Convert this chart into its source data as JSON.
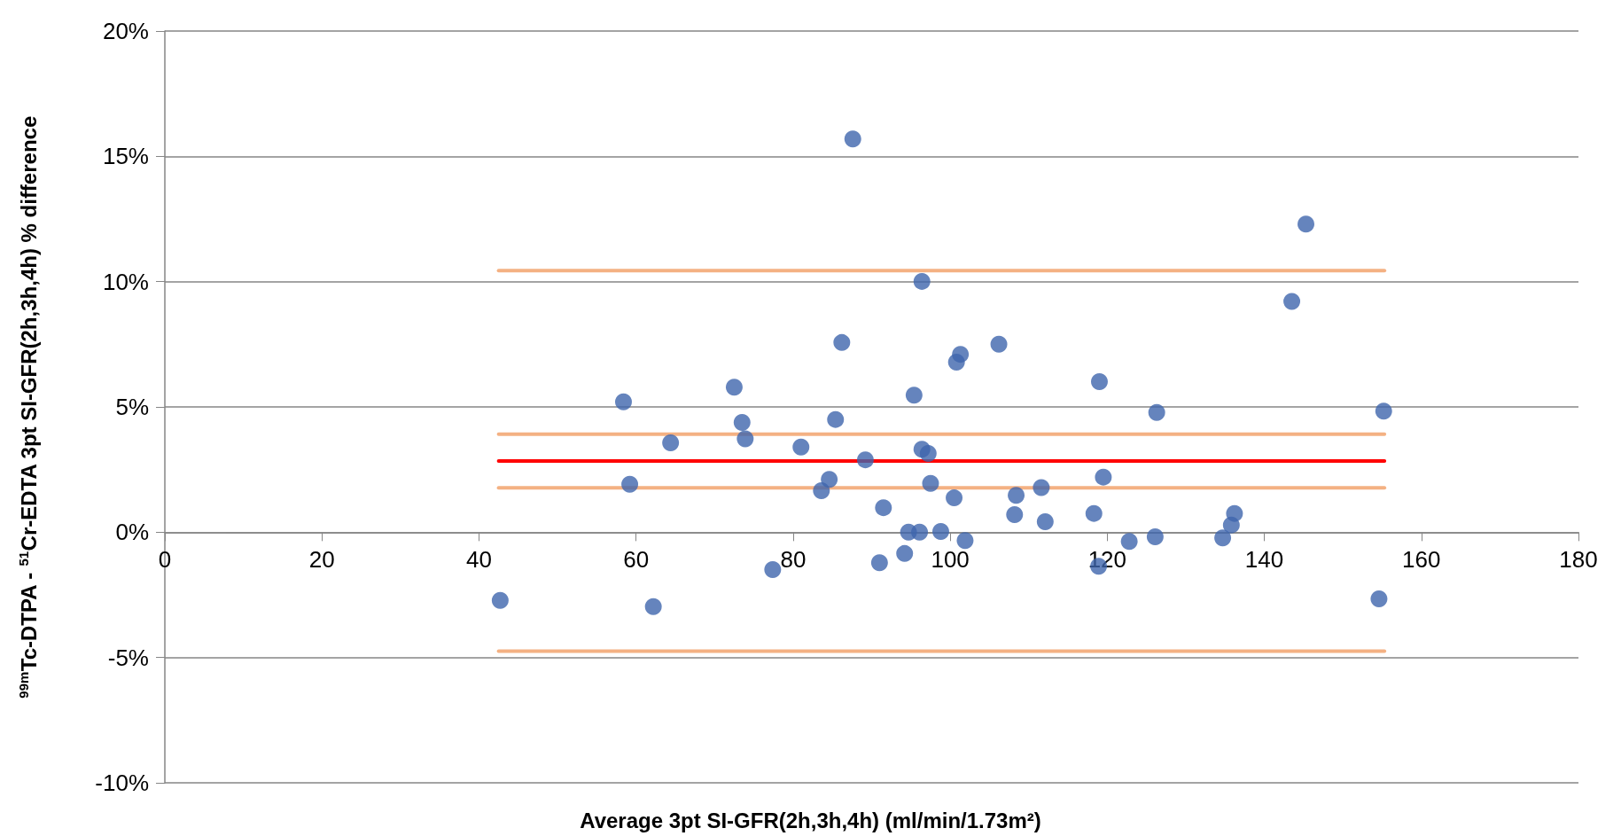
{
  "chart_data": {
    "type": "scatter",
    "xlabel": "Average 3pt SI-GFR(2h,3h,4h) (ml/min/1.73m²)",
    "ylabel": "$^{99m}$Tc-DTPA - $^{51}$Cr-EDTA 3pt SI-GFR(2h,3h,4h) % difference",
    "xlim": [
      0,
      180
    ],
    "xticks": [
      0,
      20,
      40,
      60,
      80,
      100,
      120,
      140,
      160,
      180
    ],
    "ylim": [
      -10,
      20
    ],
    "yticks": [
      {
        "value": -10,
        "label": "-10%"
      },
      {
        "value": -5,
        "label": "-5%"
      },
      {
        "value": 0,
        "label": "0%"
      },
      {
        "value": 5,
        "label": "5%"
      },
      {
        "value": 10,
        "label": "10%"
      },
      {
        "value": 15,
        "label": "15%"
      },
      {
        "value": 20,
        "label": "20%"
      }
    ],
    "grid": "y",
    "marker": "circle",
    "series": [
      {
        "color": "#3f65ad",
        "x": [
          42.7,
          58.4,
          59.2,
          62.2,
          64.4,
          72.5,
          73.5,
          73.9,
          77.4,
          81.0,
          83.6,
          84.6,
          85.4,
          86.2,
          87.6,
          89.2,
          91.0,
          91.5,
          94.2,
          94.7,
          95.4,
          96.1,
          96.4,
          96.4,
          97.2,
          97.5,
          98.8,
          100.5,
          100.8,
          101.3,
          101.9,
          106.2,
          108.4,
          108.2,
          111.6,
          112.1,
          118.3,
          119.0,
          118.9,
          119.5,
          122.8,
          126.1,
          126.3,
          134.7,
          135.8,
          136.2,
          143.5,
          145.3,
          154.6,
          155.2
        ],
        "values": [
          -2.72,
          5.2,
          1.91,
          -2.97,
          3.57,
          5.79,
          4.38,
          3.73,
          -1.49,
          3.4,
          1.66,
          2.11,
          4.5,
          7.57,
          15.69,
          2.89,
          -1.22,
          0.98,
          -0.85,
          0.0,
          5.47,
          0.0,
          3.31,
          10.01,
          3.14,
          1.95,
          0.03,
          1.37,
          6.79,
          7.1,
          -0.33,
          7.5,
          1.47,
          0.7,
          1.78,
          0.42,
          0.75,
          6.01,
          -1.36,
          2.2,
          -0.37,
          -0.18,
          4.78,
          -0.23,
          0.29,
          0.75,
          9.21,
          12.3,
          -2.66,
          4.83
        ]
      },
      {
        "type": "line",
        "color": "#ff0000",
        "line_style": "solid",
        "marker": "none",
        "x": [
          42.5,
          155.3
        ],
        "values": [
          2.84,
          2.84
        ]
      },
      {
        "type": "line",
        "color": "#f4b183",
        "line_style": "solid",
        "marker": "none",
        "x": [
          42.5,
          155.3
        ],
        "values": [
          10.44,
          10.44
        ]
      },
      {
        "type": "line",
        "color": "#f4b183",
        "line_style": "solid",
        "marker": "none",
        "x": [
          42.5,
          155.3
        ],
        "values": [
          3.91,
          3.91
        ]
      },
      {
        "type": "line",
        "color": "#f4b183",
        "line_style": "solid",
        "marker": "none",
        "x": [
          42.5,
          155.3
        ],
        "values": [
          1.77,
          1.77
        ]
      },
      {
        "type": "line",
        "color": "#f4b183",
        "line_style": "solid",
        "marker": "none",
        "x": [
          42.5,
          155.3
        ],
        "values": [
          -4.75,
          -4.75
        ]
      }
    ]
  }
}
